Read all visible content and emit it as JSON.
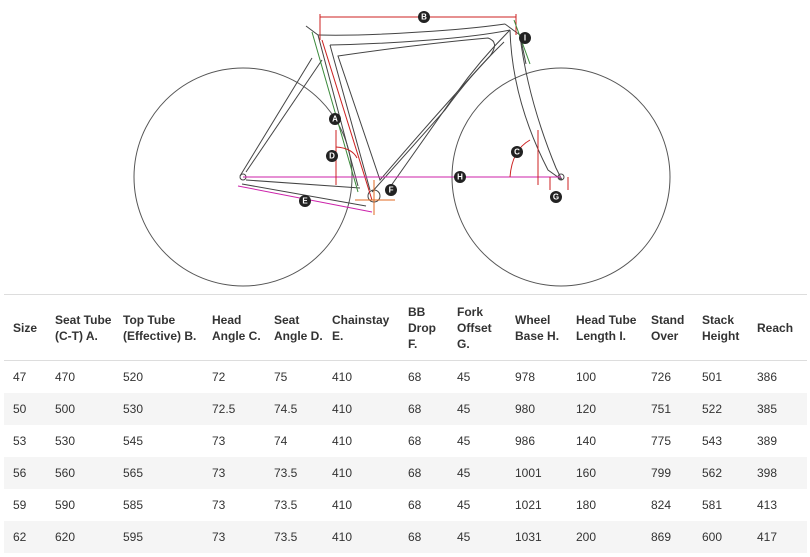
{
  "diagram": {
    "markers": [
      "A",
      "B",
      "C",
      "D",
      "E",
      "F",
      "G",
      "H",
      "I"
    ],
    "colors": {
      "frame": "#444444",
      "wheel": "#555555",
      "red": "#cc2222",
      "magenta": "#cc22aa",
      "orange": "#e06a20",
      "green": "#3a8a3a",
      "marker": "#222222"
    }
  },
  "table": {
    "headers": [
      "Size",
      "Seat Tube (C-T) A.",
      "Top Tube (Effective) B.",
      "Head Angle C.",
      "Seat Angle D.",
      "Chainstay E.",
      "BB Drop F.",
      "Fork Offset G.",
      "Wheel Base H.",
      "Head Tube Length I.",
      "Stand Over",
      "Stack Height",
      "Reach"
    ],
    "rows": [
      [
        "47",
        "470",
        "520",
        "72",
        "75",
        "410",
        "68",
        "45",
        "978",
        "100",
        "726",
        "501",
        "386"
      ],
      [
        "50",
        "500",
        "530",
        "72.5",
        "74.5",
        "410",
        "68",
        "45",
        "980",
        "120",
        "751",
        "522",
        "385"
      ],
      [
        "53",
        "530",
        "545",
        "73",
        "74",
        "410",
        "68",
        "45",
        "986",
        "140",
        "775",
        "543",
        "389"
      ],
      [
        "56",
        "560",
        "565",
        "73",
        "73.5",
        "410",
        "68",
        "45",
        "1001",
        "160",
        "799",
        "562",
        "398"
      ],
      [
        "59",
        "590",
        "585",
        "73",
        "73.5",
        "410",
        "68",
        "45",
        "1021",
        "180",
        "824",
        "581",
        "413"
      ],
      [
        "62",
        "620",
        "595",
        "73",
        "73.5",
        "410",
        "68",
        "45",
        "1031",
        "200",
        "869",
        "600",
        "417"
      ]
    ]
  }
}
